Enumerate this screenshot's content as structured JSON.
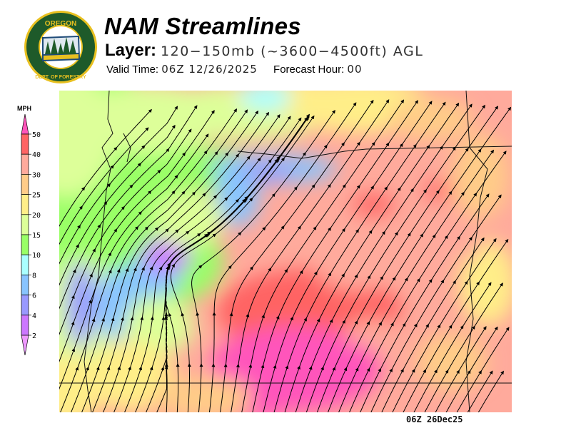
{
  "header": {
    "title": "NAM Streamlines",
    "layer_label": "Layer:",
    "layer_value": "120−150mb (~3600−4500ft) AGL",
    "valid_label": "Valid Time:",
    "valid_value": "06Z  12/26/2025",
    "forecast_label": "Forecast Hour:",
    "forecast_value": "00"
  },
  "logo": {
    "text_top": "OREGON",
    "text_bottom": "DEPARTMENT OF FORESTRY",
    "colors": {
      "ring": "#1e5a2a",
      "gold": "#e8c020"
    }
  },
  "legend": {
    "unit": "MPH",
    "ticks": [
      "50",
      "40",
      "30",
      "25",
      "20",
      "15",
      "10",
      "8",
      "6",
      "4",
      "2"
    ],
    "colors": [
      "#ff55bb",
      "#ff6464",
      "#ffaa9c",
      "#ffcc88",
      "#ffee88",
      "#ddff99",
      "#99ff66",
      "#aaffff",
      "#88c4ff",
      "#9999ff",
      "#cc77ff",
      "#ee99ff"
    ]
  },
  "footer": {
    "timestamp": "06Z 26Dec25"
  }
}
